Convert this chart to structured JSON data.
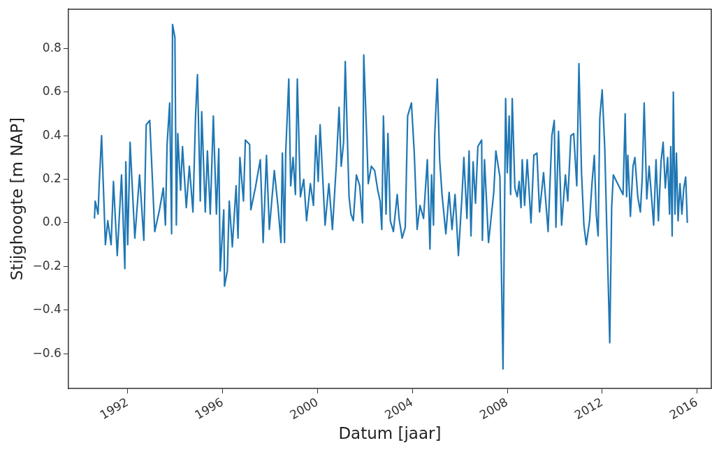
{
  "chart_data": {
    "type": "line",
    "xlabel": "Datum [jaar]",
    "ylabel": "Stijghoogte [m NAP]",
    "xlim": [
      1989.5,
      2016.6
    ],
    "xticks": [
      1992,
      1996,
      2000,
      2004,
      2008,
      2012,
      2016
    ],
    "ylim": [
      -0.76,
      0.98
    ],
    "yticks": [
      {
        "value": -0.6,
        "label": "−0.6"
      },
      {
        "value": -0.4,
        "label": "−0.4"
      },
      {
        "value": -0.2,
        "label": "−0.2"
      },
      {
        "value": 0,
        "label": "0.0"
      },
      {
        "value": 0.2,
        "label": "0.2"
      },
      {
        "value": 0.4,
        "label": "0.4"
      },
      {
        "value": 0.6,
        "label": "0.6"
      },
      {
        "value": 0.8,
        "label": "0.8"
      }
    ],
    "grid": false,
    "legend": false,
    "marker": "none",
    "line_style": "solid",
    "series": [
      {
        "color": "#1f77b4",
        "x": [
          1990.6,
          1990.63,
          1990.75,
          1990.8,
          1990.9,
          1991.06,
          1991.16,
          1991.3,
          1991.4,
          1991.56,
          1991.74,
          1991.88,
          1991.92,
          1992.0,
          1992.1,
          1992.3,
          1992.5,
          1992.68,
          1992.78,
          1992.93,
          1993.14,
          1993.34,
          1993.5,
          1993.59,
          1993.66,
          1993.77,
          1993.85,
          1993.89,
          1993.99,
          1994.05,
          1994.11,
          1994.23,
          1994.31,
          1994.47,
          1994.6,
          1994.75,
          1994.86,
          1994.94,
          1995.06,
          1995.12,
          1995.27,
          1995.36,
          1995.48,
          1995.61,
          1995.74,
          1995.84,
          1995.9,
          1996.05,
          1996.08,
          1996.2,
          1996.28,
          1996.41,
          1996.57,
          1996.65,
          1996.73,
          1996.88,
          1996.96,
          1997.14,
          1997.19,
          1997.38,
          1997.59,
          1997.71,
          1997.85,
          1997.97,
          1998.18,
          1998.34,
          1998.46,
          1998.52,
          1998.61,
          1998.66,
          1998.79,
          1998.87,
          1998.97,
          1999.07,
          1999.15,
          1999.28,
          1999.42,
          1999.54,
          1999.7,
          1999.83,
          1999.93,
          2000.03,
          2000.11,
          2000.32,
          2000.48,
          2000.63,
          2000.79,
          2000.91,
          2001.0,
          2001.1,
          2001.17,
          2001.33,
          2001.41,
          2001.51,
          2001.64,
          2001.78,
          2001.9,
          2001.95,
          2002.07,
          2002.14,
          2002.27,
          2002.41,
          2002.54,
          2002.64,
          2002.71,
          2002.78,
          2002.89,
          2002.97,
          2003.07,
          2003.2,
          2003.36,
          2003.44,
          2003.57,
          2003.7,
          2003.8,
          2003.96,
          2004.08,
          2004.2,
          2004.32,
          2004.47,
          2004.63,
          2004.74,
          2004.81,
          2004.89,
          2004.94,
          2005.05,
          2005.15,
          2005.25,
          2005.41,
          2005.55,
          2005.67,
          2005.8,
          2005.94,
          2006.09,
          2006.17,
          2006.3,
          2006.39,
          2006.47,
          2006.56,
          2006.66,
          2006.76,
          2006.92,
          2006.95,
          2007.04,
          2007.21,
          2007.43,
          2007.52,
          2007.59,
          2007.69,
          2007.82,
          2007.93,
          2008.0,
          2008.08,
          2008.14,
          2008.21,
          2008.32,
          2008.42,
          2008.5,
          2008.58,
          2008.63,
          2008.73,
          2008.84,
          2009.0,
          2009.12,
          2009.25,
          2009.36,
          2009.53,
          2009.72,
          2009.88,
          2009.98,
          2010.05,
          2010.16,
          2010.29,
          2010.45,
          2010.55,
          2010.68,
          2010.8,
          2010.93,
          2011.02,
          2011.13,
          2011.23,
          2011.33,
          2011.47,
          2011.57,
          2011.67,
          2011.75,
          2011.83,
          2011.9,
          2012.0,
          2012.11,
          2012.2,
          2012.32,
          2012.4,
          2012.47,
          2012.88,
          2012.97,
          2013.03,
          2013.08,
          2013.19,
          2013.3,
          2013.38,
          2013.5,
          2013.61,
          2013.69,
          2013.77,
          2013.88,
          2013.98,
          2014.17,
          2014.27,
          2014.37,
          2014.48,
          2014.57,
          2014.66,
          2014.76,
          2014.84,
          2014.89,
          2014.95,
          2015.0,
          2015.07,
          2015.13,
          2015.2,
          2015.28,
          2015.36,
          2015.44,
          2015.52,
          2015.59
        ],
        "values": [
          0.02,
          0.1,
          0.04,
          0.18,
          0.4,
          -0.1,
          0.01,
          -0.1,
          0.19,
          -0.15,
          0.22,
          -0.21,
          0.28,
          -0.1,
          0.37,
          -0.07,
          0.22,
          -0.08,
          0.45,
          0.47,
          -0.04,
          0.06,
          0.16,
          -0.01,
          0.36,
          0.55,
          -0.05,
          0.91,
          0.85,
          -0.01,
          0.41,
          0.15,
          0.35,
          0.07,
          0.26,
          0.05,
          0.49,
          0.68,
          0.1,
          0.51,
          0.05,
          0.33,
          0.04,
          0.49,
          0.04,
          0.34,
          -0.22,
          0.06,
          -0.29,
          -0.22,
          0.1,
          -0.11,
          0.17,
          -0.07,
          0.3,
          0.1,
          0.38,
          0.36,
          0.06,
          0.16,
          0.29,
          -0.09,
          0.31,
          -0.03,
          0.24,
          0.07,
          -0.09,
          0.32,
          -0.09,
          0.32,
          0.66,
          0.17,
          0.3,
          0.13,
          0.66,
          0.12,
          0.2,
          0.01,
          0.18,
          0.08,
          0.4,
          0.19,
          0.45,
          -0.01,
          0.18,
          -0.03,
          0.26,
          0.53,
          0.26,
          0.37,
          0.74,
          0.12,
          0.04,
          0.01,
          0.22,
          0.17,
          0.0,
          0.77,
          0.41,
          0.18,
          0.26,
          0.24,
          0.15,
          0.1,
          -0.03,
          0.49,
          0.04,
          0.41,
          0.01,
          -0.04,
          0.13,
          0.02,
          -0.07,
          -0.02,
          0.49,
          0.55,
          0.32,
          -0.03,
          0.08,
          0.02,
          0.29,
          -0.12,
          0.22,
          -0.01,
          0.4,
          0.66,
          0.29,
          0.13,
          -0.05,
          0.14,
          -0.03,
          0.13,
          -0.15,
          0.12,
          0.3,
          0.02,
          0.33,
          -0.06,
          0.28,
          0.09,
          0.35,
          0.38,
          -0.08,
          0.29,
          -0.09,
          0.14,
          0.33,
          0.28,
          0.21,
          -0.67,
          0.57,
          0.23,
          0.49,
          0.13,
          0.57,
          0.16,
          0.12,
          0.19,
          0.07,
          0.29,
          0.08,
          0.29,
          0.0,
          0.31,
          0.32,
          0.05,
          0.23,
          -0.04,
          0.4,
          0.47,
          -0.02,
          0.42,
          -0.01,
          0.22,
          0.1,
          0.4,
          0.41,
          0.17,
          0.73,
          0.23,
          -0.01,
          -0.1,
          0.01,
          0.18,
          0.31,
          0.04,
          -0.06,
          0.48,
          0.61,
          0.34,
          -0.05,
          -0.55,
          0.07,
          0.22,
          0.13,
          0.5,
          0.12,
          0.31,
          0.03,
          0.26,
          0.3,
          0.12,
          0.05,
          0.21,
          0.55,
          0.11,
          0.26,
          -0.01,
          0.29,
          0.01,
          0.28,
          0.37,
          0.16,
          0.3,
          0.04,
          0.35,
          -0.06,
          0.6,
          0.04,
          0.32,
          0.01,
          0.18,
          0.04,
          0.16,
          0.21,
          0.0
        ]
      }
    ]
  }
}
